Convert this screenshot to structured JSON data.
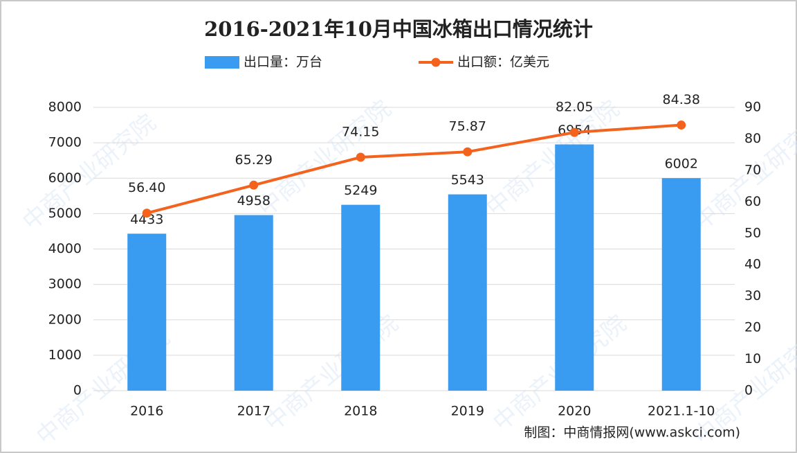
{
  "chart_data": {
    "type": "bar-line",
    "title": "2016-2021年10月中国冰箱出口情况统计",
    "categories": [
      "2016",
      "2017",
      "2018",
      "2019",
      "2020",
      "2021.1-10"
    ],
    "series": [
      {
        "name": "出口量：万台",
        "type": "bar",
        "color": "#3a9cf0",
        "values": [
          4433,
          4958,
          5249,
          5543,
          6954,
          6002
        ]
      },
      {
        "name": "出口额：亿美元",
        "type": "line",
        "axis": "y2",
        "color": "#f4631e",
        "values": [
          56.4,
          65.29,
          74.15,
          75.87,
          82.05,
          84.38
        ],
        "value_labels": [
          "56.40",
          "65.29",
          "74.15",
          "75.87",
          "82.05",
          "84.38"
        ]
      }
    ],
    "ylim": [
      0,
      8000
    ],
    "yticks": [
      0,
      1000,
      2000,
      3000,
      4000,
      5000,
      6000,
      7000,
      8000
    ],
    "y2lim": [
      0,
      90
    ],
    "y2ticks": [
      0,
      10,
      20,
      30,
      40,
      50,
      60,
      70,
      80,
      90
    ],
    "grid": true,
    "legend": "top",
    "source": "制图：中商情报网(www.askci.com)",
    "watermark": "中商产业研究院"
  }
}
